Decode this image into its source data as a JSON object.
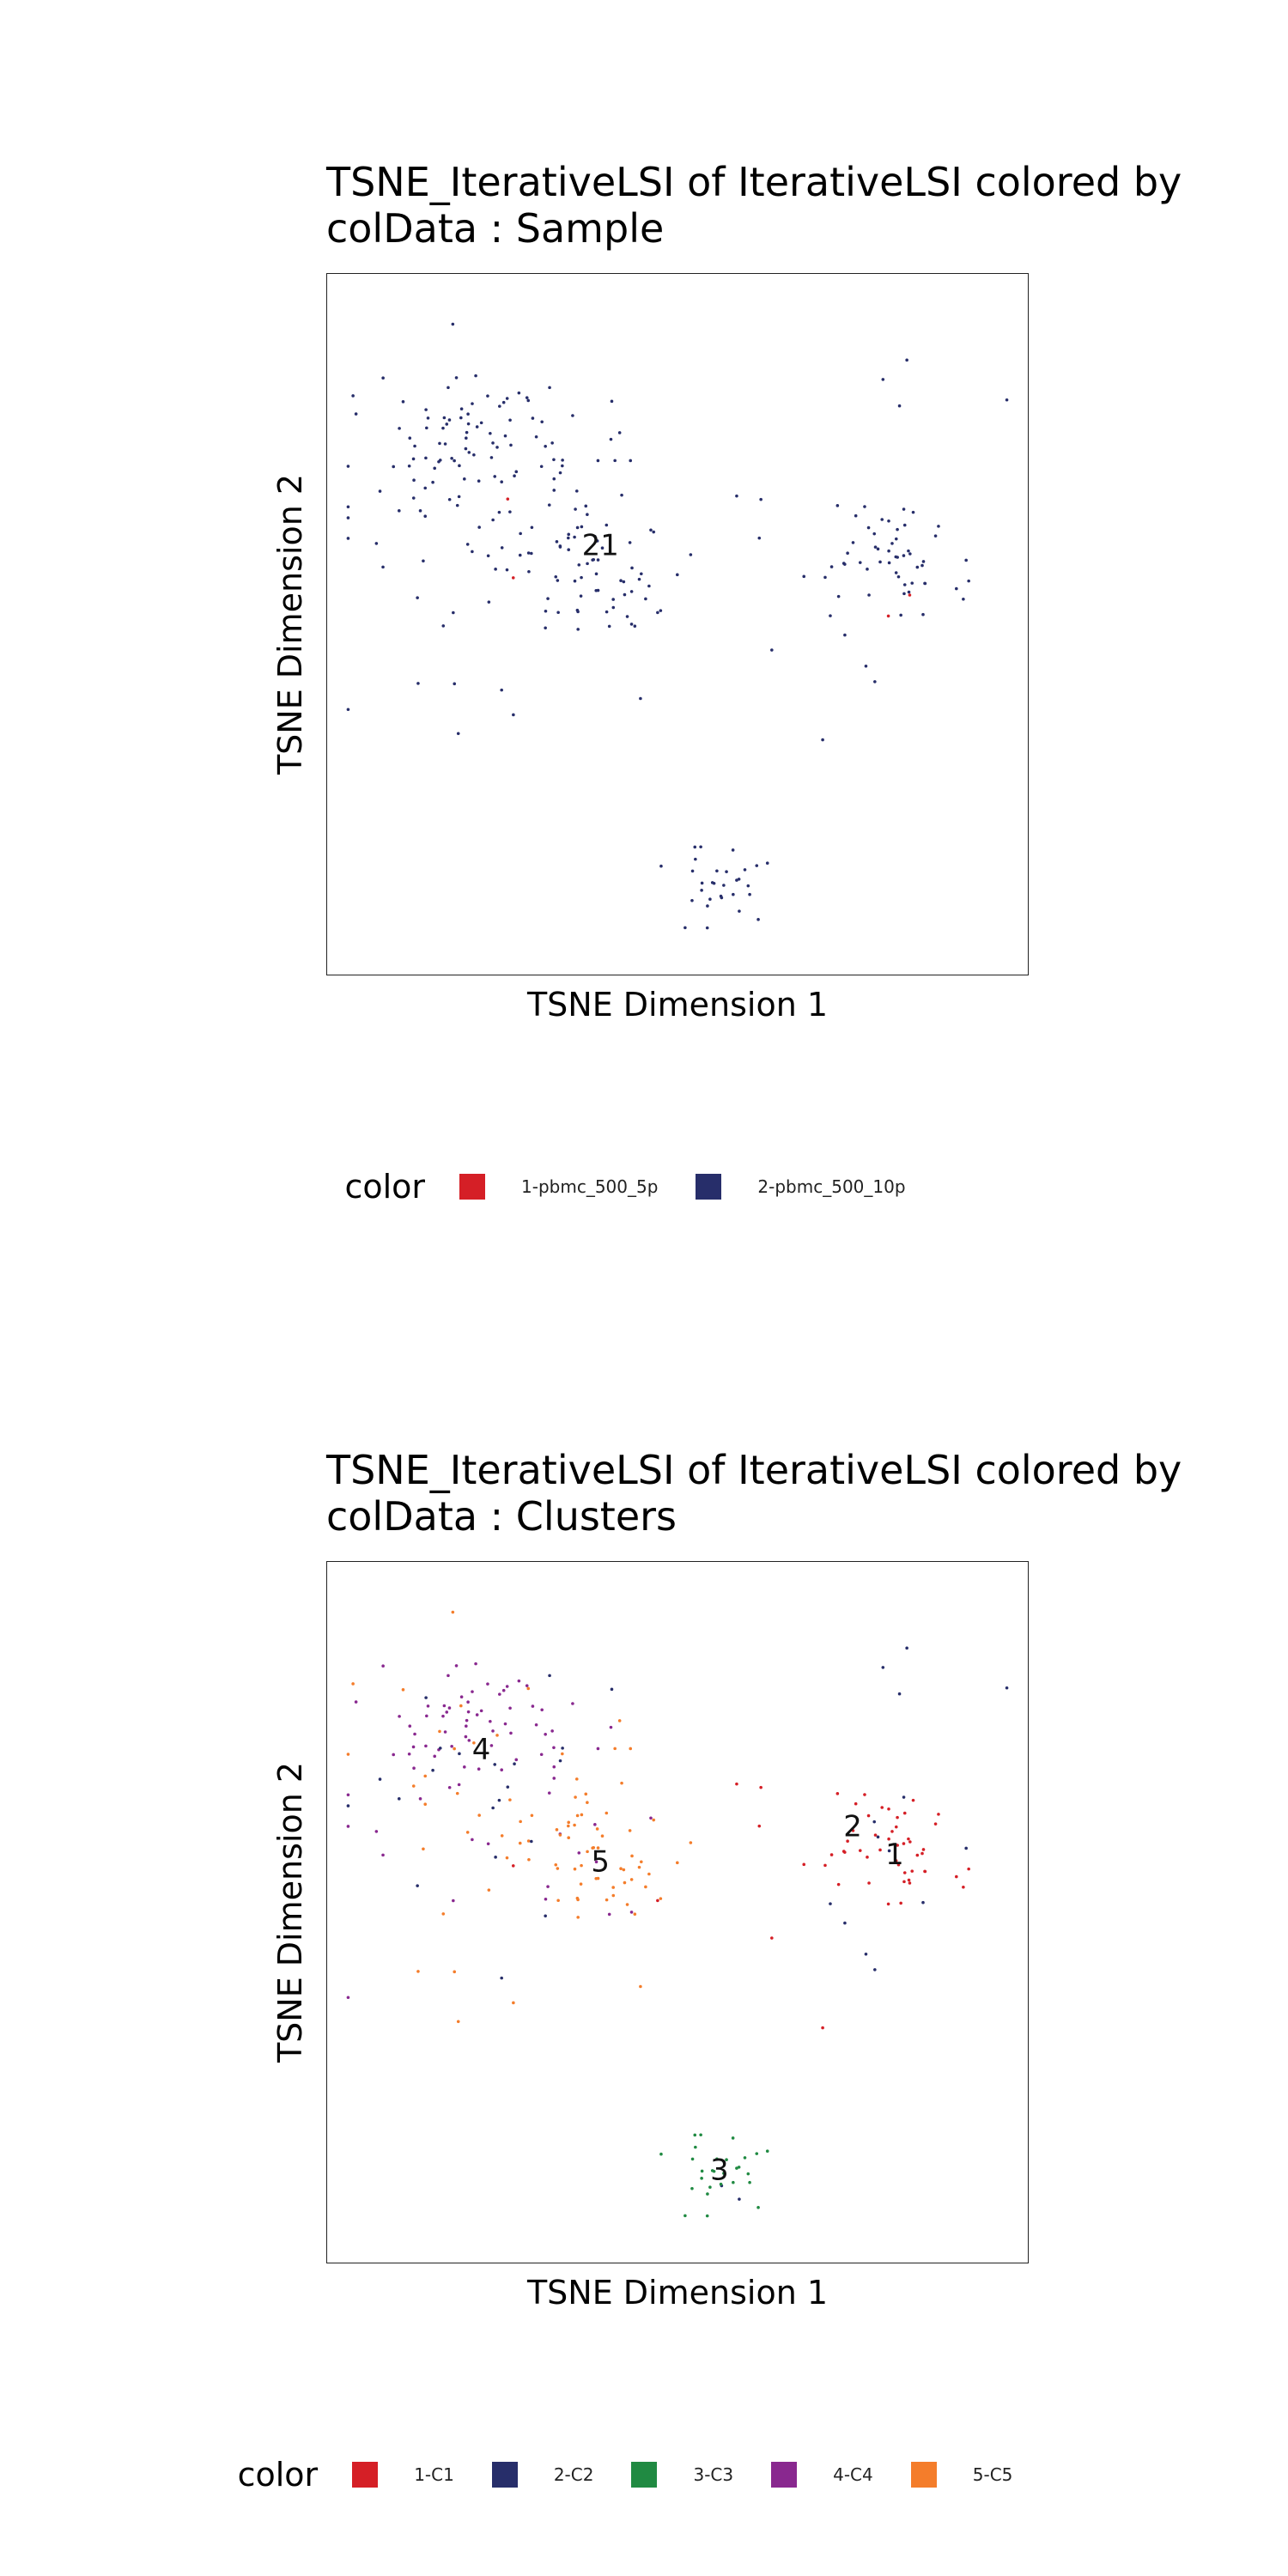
{
  "chart_data": [
    {
      "type": "scatter",
      "title": "TSNE_IterativeLSI of IterativeLSI  colored by\ncolData :  Sample",
      "xlabel": "TSNE Dimension 1",
      "ylabel": "TSNE Dimension 2",
      "xlim": [
        0,
        100
      ],
      "ylim": [
        0,
        100
      ],
      "grid": false,
      "legend_title": "color",
      "legend_position": "bottom",
      "categories": [
        "1-pbmc_500_5p",
        "2-pbmc_500_10p"
      ],
      "colors": [
        "#D51F26",
        "#272E6A"
      ],
      "point_labels": [
        {
          "text": "21",
          "x": 39,
          "y": 61
        }
      ],
      "clusters": [
        {
          "center": [
            22,
            77
          ],
          "spread": [
            6,
            5
          ],
          "n": 60,
          "mix": [
            0.04,
            0.96
          ]
        },
        {
          "center": [
            38,
            59
          ],
          "spread": [
            6,
            6
          ],
          "n": 60,
          "mix": [
            0.05,
            0.95
          ]
        },
        {
          "center": [
            22,
            68
          ],
          "spread": [
            13,
            13
          ],
          "n": 70,
          "mix": [
            0.05,
            0.95
          ]
        },
        {
          "center": [
            81,
            60
          ],
          "spread": [
            4,
            4
          ],
          "n": 45,
          "mix": [
            0.03,
            0.97
          ]
        },
        {
          "center": [
            79,
            59
          ],
          "spread": [
            11,
            11
          ],
          "n": 24,
          "mix": [
            0.03,
            0.97
          ]
        },
        {
          "center": [
            57,
            13
          ],
          "spread": [
            3,
            3
          ],
          "n": 30,
          "mix": [
            0.05,
            0.95
          ]
        }
      ]
    },
    {
      "type": "scatter",
      "title": "TSNE_IterativeLSI of IterativeLSI  colored by\ncolData :  Clusters",
      "xlabel": "TSNE Dimension 1",
      "ylabel": "TSNE Dimension 2",
      "xlim": [
        0,
        100
      ],
      "ylim": [
        0,
        100
      ],
      "grid": false,
      "legend_title": "color",
      "legend_position": "bottom",
      "categories": [
        "1-C1",
        "2-C2",
        "3-C3",
        "4-C4",
        "5-C5"
      ],
      "colors": [
        "#D51F26",
        "#272E6A",
        "#208A42",
        "#89288F",
        "#F47D2B"
      ],
      "point_labels": [
        {
          "text": "1",
          "x": 81,
          "y": 58
        },
        {
          "text": "2",
          "x": 75,
          "y": 62
        },
        {
          "text": "3",
          "x": 56,
          "y": 13
        },
        {
          "text": "4",
          "x": 22,
          "y": 73
        },
        {
          "text": "5",
          "x": 39,
          "y": 57
        }
      ],
      "clusters": [
        {
          "center": [
            22,
            77
          ],
          "spread": [
            6,
            5
          ],
          "n": 60,
          "mix": [
            0.02,
            0.05,
            0,
            0.85,
            0.08
          ]
        },
        {
          "center": [
            38,
            59
          ],
          "spread": [
            6,
            6
          ],
          "n": 60,
          "mix": [
            0.02,
            0.03,
            0,
            0.08,
            0.87
          ]
        },
        {
          "center": [
            22,
            68
          ],
          "spread": [
            13,
            13
          ],
          "n": 70,
          "mix": [
            0.03,
            0.25,
            0,
            0.3,
            0.42
          ]
        },
        {
          "center": [
            81,
            60
          ],
          "spread": [
            4,
            4
          ],
          "n": 45,
          "mix": [
            0.85,
            0.15,
            0,
            0,
            0
          ]
        },
        {
          "center": [
            79,
            59
          ],
          "spread": [
            11,
            11
          ],
          "n": 24,
          "mix": [
            0.45,
            0.55,
            0,
            0,
            0
          ]
        },
        {
          "center": [
            57,
            13
          ],
          "spread": [
            3,
            3
          ],
          "n": 30,
          "mix": [
            0.03,
            0.05,
            0.92,
            0,
            0
          ]
        }
      ]
    }
  ]
}
